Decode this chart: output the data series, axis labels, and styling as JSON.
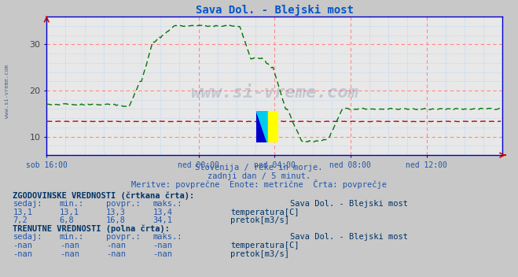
{
  "title": "Sava Dol. - Blejski most",
  "title_color": "#0055cc",
  "bg_color": "#c8c8c8",
  "plot_bg_color": "#e8e8e8",
  "grid_color_major": "#ff8888",
  "grid_color_minor": "#99ccff",
  "axis_color": "#0000cc",
  "tick_color": "#2255aa",
  "ylim": [
    6,
    36
  ],
  "yticks": [
    10,
    20,
    30
  ],
  "xlim": [
    0,
    288
  ],
  "xtick_labels": [
    "sob 16:00",
    "ned 00:00",
    "ned 04:00",
    "ned 08:00",
    "ned 12:00"
  ],
  "xtick_positions": [
    0,
    96,
    144,
    192,
    240
  ],
  "watermark": "www.si-vreme.com",
  "subtitle1": "Slovenija / reke in morje.",
  "subtitle2": "zadnji dan / 5 minut.",
  "subtitle3": "Meritve: povprečne  Enote: metrične  Črta: povprečje",
  "temp_color": "#cc0000",
  "flow_color": "#007700",
  "temp_avg": 13.3,
  "flow_avg": 16.8,
  "flow_max": 34.1,
  "flow_min": 6.8,
  "temp_min": 13.1,
  "temp_max": 13.4,
  "temp_current": 13.1,
  "flow_current": 7.2,
  "side_label": "www.si-vreme.com"
}
